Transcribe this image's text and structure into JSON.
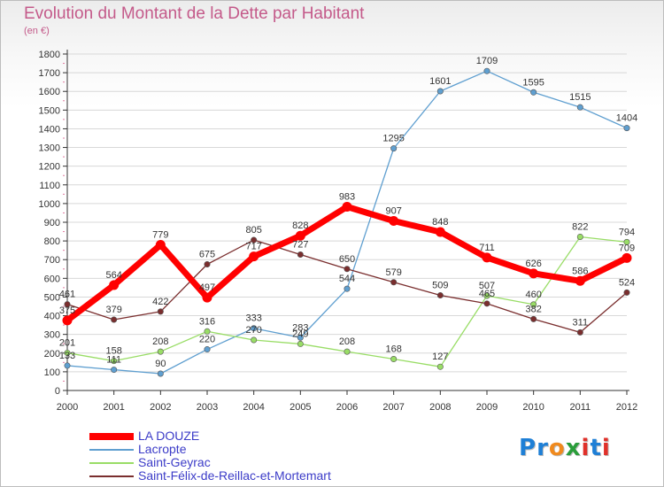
{
  "title": "Evolution du Montant de la Dette par Habitant",
  "subtitle": "(en €)",
  "logo": {
    "text": "Proxiti",
    "colors": [
      "#1e7fd6",
      "#1e7fd6",
      "#f08a1e",
      "#2a9d3a",
      "#e0302a",
      "#1e7fd6",
      "#e0302a"
    ]
  },
  "chart_data": {
    "type": "line",
    "x": [
      "2000",
      "2001",
      "2002",
      "2003",
      "2004",
      "2005",
      "2006",
      "2007",
      "2008",
      "2009",
      "2010",
      "2011",
      "2012"
    ],
    "ylim": [
      0,
      1800
    ],
    "yticks": [
      0,
      100,
      200,
      300,
      400,
      500,
      600,
      700,
      800,
      900,
      1000,
      1100,
      1200,
      1300,
      1400,
      1500,
      1600,
      1700,
      1800
    ],
    "grid": "horizontal",
    "legend": "bottom-left",
    "series": [
      {
        "name": "LA DOUZE",
        "color": "#ff0000",
        "values": [
          375,
          564,
          779,
          497,
          717,
          828,
          983,
          907,
          848,
          711,
          626,
          586,
          709
        ],
        "labels": [
          "375",
          "564",
          "779",
          "497",
          "717",
          "828",
          "983",
          "907",
          "848",
          "711",
          "626",
          "586",
          "709"
        ]
      },
      {
        "name": "Lacropte",
        "color": "#5f9fd0",
        "values": [
          133,
          111,
          90,
          220,
          333,
          283,
          544,
          1295,
          1601,
          1709,
          1595,
          1515,
          1404
        ],
        "labels": [
          "133",
          "111",
          "90",
          "220",
          "333",
          "283",
          "544",
          "1295",
          "1601",
          "1709",
          "1595",
          "1515",
          "1404"
        ]
      },
      {
        "name": "Saint-Geyrac",
        "color": "#99dd66",
        "values": [
          201,
          158,
          208,
          316,
          270,
          249,
          208,
          168,
          127,
          507,
          460,
          822,
          794
        ],
        "labels": [
          "201",
          "158",
          "208",
          "316",
          "270",
          "249",
          "208",
          "168",
          "127",
          "507",
          "460",
          "822",
          "794"
        ]
      },
      {
        "name": "Saint-Félix-de-Reillac-et-Mortemart",
        "color": "#7a2e2e",
        "values": [
          461,
          379,
          422,
          675,
          805,
          727,
          650,
          579,
          509,
          465,
          382,
          311,
          524
        ],
        "labels": [
          "461",
          "379",
          "422",
          "675",
          "805",
          "727",
          "650",
          "579",
          "509",
          "465",
          "382",
          "311",
          "524"
        ]
      }
    ]
  }
}
